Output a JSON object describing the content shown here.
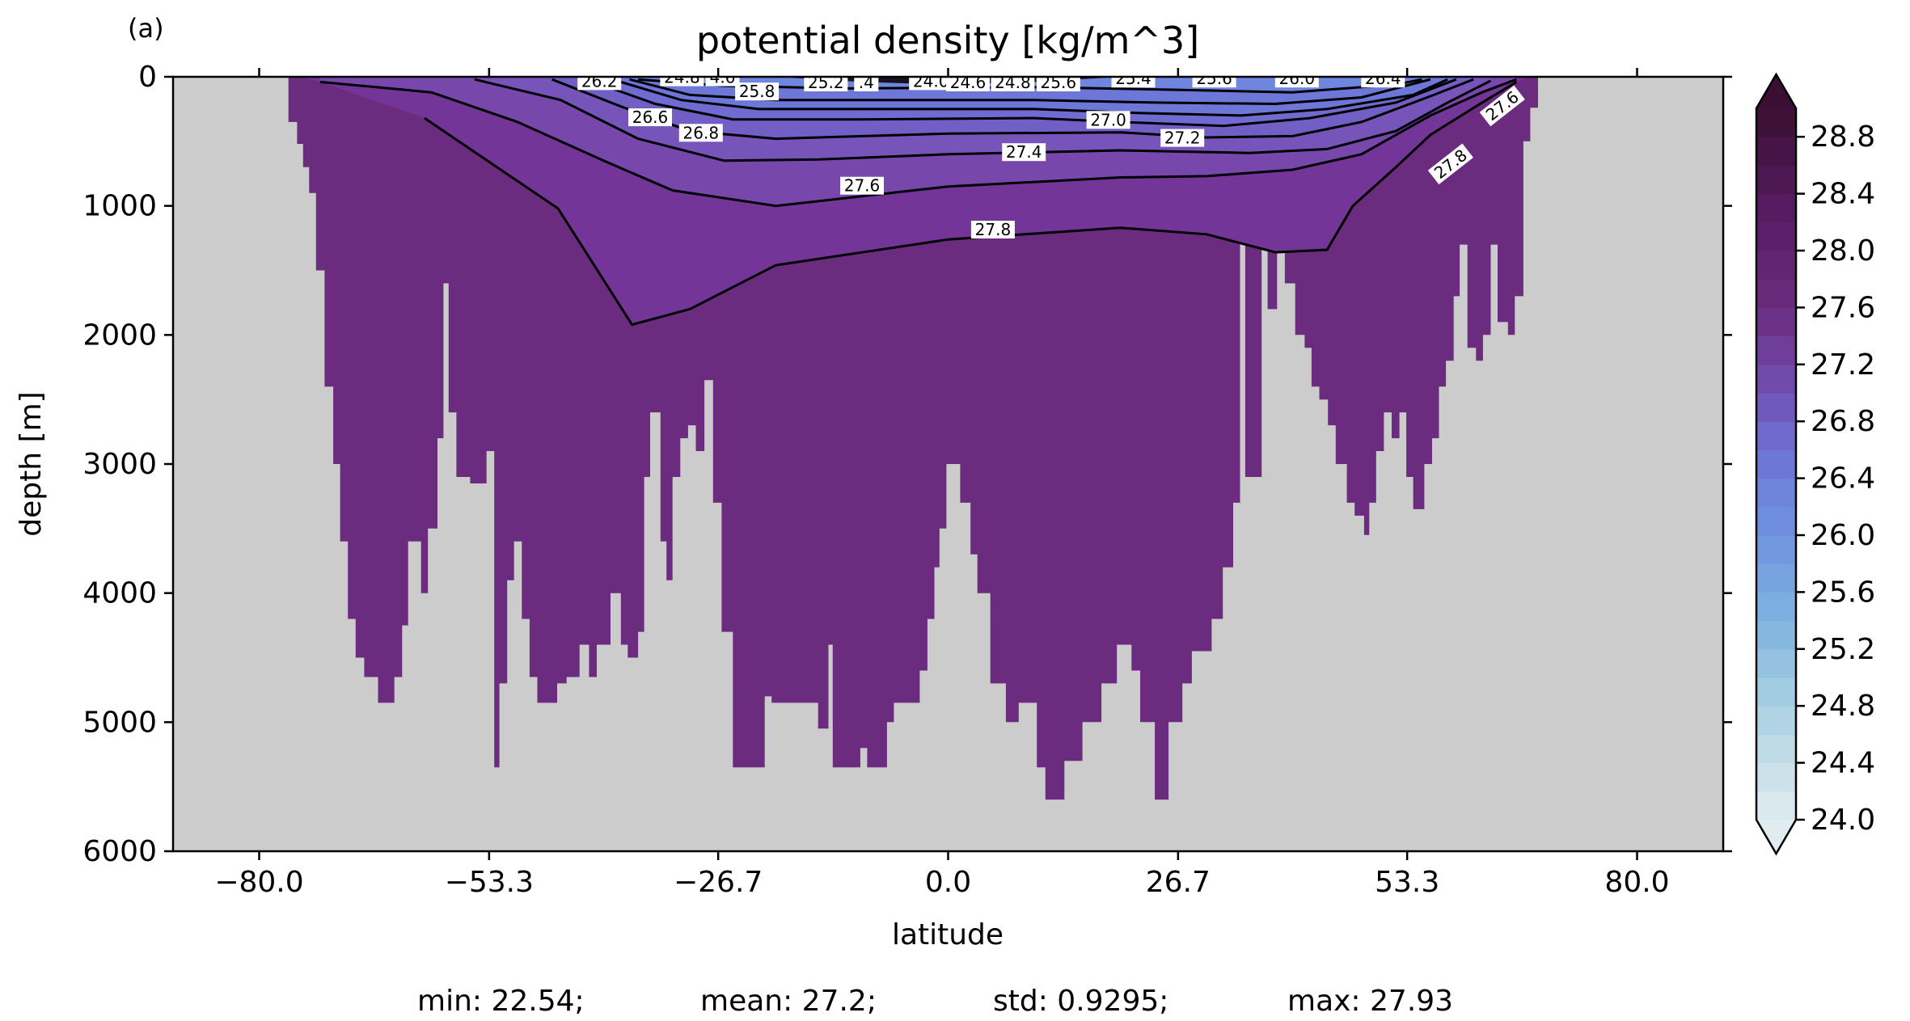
{
  "panel_label": "(a)",
  "chart_data": {
    "type": "contour",
    "title": "potential density [kg/m^3]",
    "xlabel": "latitude",
    "ylabel": "depth [m]",
    "xlim": [
      -90,
      90
    ],
    "ylim": [
      6000,
      0
    ],
    "y_inverted": true,
    "x_ticks": [
      -80.0,
      -53.3,
      -26.7,
      0.0,
      26.7,
      53.3,
      80.0
    ],
    "x_tick_labels": [
      "−80.0",
      "−53.3",
      "−26.7",
      "0.0",
      "26.7",
      "53.3",
      "80.0"
    ],
    "y_ticks": [
      0,
      1000,
      2000,
      3000,
      4000,
      5000,
      6000
    ],
    "y_tick_labels": [
      "0",
      "1000",
      "2000",
      "3000",
      "4000",
      "5000",
      "6000"
    ],
    "land_mask_color": "#cccccc",
    "deep_fill_color": "#6b2c7f",
    "colorbar": {
      "min": 24.0,
      "max": 29.0,
      "step": 0.2,
      "extend": "both",
      "tick_values": [
        24.0,
        24.4,
        24.8,
        25.2,
        25.6,
        26.0,
        26.4,
        26.8,
        27.2,
        27.6,
        28.0,
        28.4,
        28.8
      ],
      "tick_labels": [
        "24.0",
        "24.4",
        "24.8",
        "25.2",
        "25.6",
        "26.0",
        "26.4",
        "26.8",
        "27.2",
        "27.6",
        "28.0",
        "28.4",
        "28.8"
      ],
      "colormap_stops": [
        [
          24.0,
          "#e0ecef"
        ],
        [
          24.8,
          "#a9d1e1"
        ],
        [
          25.4,
          "#7fb3df"
        ],
        [
          26.0,
          "#6f93df"
        ],
        [
          26.6,
          "#6d73d4"
        ],
        [
          27.0,
          "#7350b4"
        ],
        [
          27.6,
          "#6b2c7f"
        ],
        [
          28.2,
          "#5a1d66"
        ],
        [
          29.0,
          "#3a0f33"
        ]
      ]
    },
    "contours": [
      {
        "level": "27.8",
        "points": [
          [
            -60.8,
            320
          ],
          [
            -45.3,
            1020
          ],
          [
            -36.7,
            1920
          ],
          [
            -30,
            1800
          ],
          [
            -20,
            1460
          ],
          [
            0,
            1260
          ],
          [
            20,
            1170
          ],
          [
            30,
            1220
          ],
          [
            38,
            1360
          ],
          [
            44,
            1340
          ],
          [
            47,
            1000
          ],
          [
            52,
            700
          ],
          [
            56,
            450
          ],
          [
            62,
            200
          ],
          [
            66,
            40
          ]
        ]
      },
      {
        "level": "27.6",
        "points": [
          [
            -72.9,
            40
          ],
          [
            -60,
            120
          ],
          [
            -50,
            350
          ],
          [
            -40,
            650
          ],
          [
            -32,
            880
          ],
          [
            -20,
            1000
          ],
          [
            0,
            850
          ],
          [
            20,
            780
          ],
          [
            30,
            770
          ],
          [
            40,
            720
          ],
          [
            48,
            600
          ],
          [
            56,
            300
          ],
          [
            62,
            120
          ],
          [
            66,
            20
          ]
        ]
      },
      {
        "level": "27.4",
        "points": [
          [
            -55,
            20
          ],
          [
            -45,
            180
          ],
          [
            -36,
            480
          ],
          [
            -26,
            650
          ],
          [
            -15,
            640
          ],
          [
            0,
            600
          ],
          [
            20,
            570
          ],
          [
            35,
            590
          ],
          [
            44,
            560
          ],
          [
            52,
            420
          ],
          [
            58,
            200
          ],
          [
            63,
            30
          ]
        ]
      },
      {
        "level": "27.2",
        "points": [
          [
            -46,
            20
          ],
          [
            -38,
            230
          ],
          [
            -30,
            420
          ],
          [
            -20,
            480
          ],
          [
            0,
            440
          ],
          [
            20,
            430
          ],
          [
            30,
            470
          ],
          [
            40,
            460
          ],
          [
            48,
            350
          ],
          [
            56,
            150
          ],
          [
            61,
            20
          ]
        ]
      },
      {
        "level": "27.0",
        "points": [
          [
            -42,
            20
          ],
          [
            -34,
            210
          ],
          [
            -25,
            330
          ],
          [
            -10,
            330
          ],
          [
            10,
            320
          ],
          [
            20,
            350
          ],
          [
            32,
            380
          ],
          [
            42,
            320
          ],
          [
            52,
            200
          ],
          [
            59,
            20
          ]
        ]
      },
      {
        "level": "26.8",
        "points": [
          [
            -39,
            20
          ],
          [
            -31,
            180
          ],
          [
            -22,
            250
          ],
          [
            -8,
            250
          ],
          [
            10,
            250
          ],
          [
            22,
            280
          ],
          [
            34,
            300
          ],
          [
            44,
            250
          ],
          [
            54,
            140
          ],
          [
            58,
            20
          ]
        ]
      },
      {
        "level": "26.6",
        "points": [
          [
            -37,
            20
          ],
          [
            -30,
            140
          ],
          [
            -20,
            180
          ],
          [
            -5,
            180
          ],
          [
            10,
            180
          ],
          [
            24,
            200
          ],
          [
            38,
            210
          ],
          [
            48,
            160
          ],
          [
            56,
            20
          ]
        ]
      },
      {
        "level": "26.2",
        "points": [
          [
            -36,
            20
          ],
          [
            -26,
            70
          ],
          [
            -12,
            90
          ],
          [
            10,
            80
          ],
          [
            26,
            100
          ],
          [
            40,
            120
          ],
          [
            52,
            60
          ],
          [
            55,
            20
          ]
        ]
      }
    ],
    "contour_labels": [
      {
        "text": "27.8",
        "lat": 5.2,
        "depth": 1190,
        "angle": 0
      },
      {
        "text": "27.6",
        "lat": -10,
        "depth": 850,
        "angle": 0
      },
      {
        "text": "27.4",
        "lat": 8.8,
        "depth": 590,
        "angle": 0
      },
      {
        "text": "27.2",
        "lat": 27.2,
        "depth": 480,
        "angle": 0
      },
      {
        "text": "27.0",
        "lat": 18.6,
        "depth": 340,
        "angle": 0
      },
      {
        "text": "26.8",
        "lat": -28.7,
        "depth": 440,
        "angle": 0
      },
      {
        "text": "26.6",
        "lat": -34.6,
        "depth": 320,
        "angle": 0
      },
      {
        "text": "25.8",
        "lat": -22.2,
        "depth": 120,
        "angle": 0
      },
      {
        "text": "26.2",
        "lat": -40.5,
        "depth": 40,
        "angle": 0
      },
      {
        "text": "24.8",
        "lat": -30.9,
        "depth": 10,
        "angle": 0
      },
      {
        "text": "4.6",
        "lat": -26.2,
        "depth": 10,
        "angle": 0
      },
      {
        "text": "25.2",
        "lat": -14.2,
        "depth": 50,
        "angle": 0
      },
      {
        "text": ".4",
        "lat": -9.5,
        "depth": 50,
        "angle": 0
      },
      {
        "text": "24.0",
        "lat": -2.0,
        "depth": 40,
        "angle": 0
      },
      {
        "text": "24.6",
        "lat": 2.3,
        "depth": 50,
        "angle": 0
      },
      {
        "text": "24.8",
        "lat": 7.5,
        "depth": 50,
        "angle": 0
      },
      {
        "text": "25.6",
        "lat": 12.8,
        "depth": 50,
        "angle": 0
      },
      {
        "text": "25.4",
        "lat": 21.5,
        "depth": 20,
        "angle": 0
      },
      {
        "text": "25.6",
        "lat": 30.9,
        "depth": 20,
        "angle": 0
      },
      {
        "text": "26.0",
        "lat": 40.5,
        "depth": 20,
        "angle": 0
      },
      {
        "text": "26.4",
        "lat": 50.5,
        "depth": 20,
        "angle": 0
      },
      {
        "text": "27.6",
        "lat": 64.4,
        "depth": 230,
        "angle": -38
      },
      {
        "text": "27.8",
        "lat": 58.4,
        "depth": 680,
        "angle": -38
      }
    ],
    "stats": {
      "min": "22.54",
      "mean": "27.2",
      "std": "0.9295",
      "max": "27.93"
    }
  }
}
